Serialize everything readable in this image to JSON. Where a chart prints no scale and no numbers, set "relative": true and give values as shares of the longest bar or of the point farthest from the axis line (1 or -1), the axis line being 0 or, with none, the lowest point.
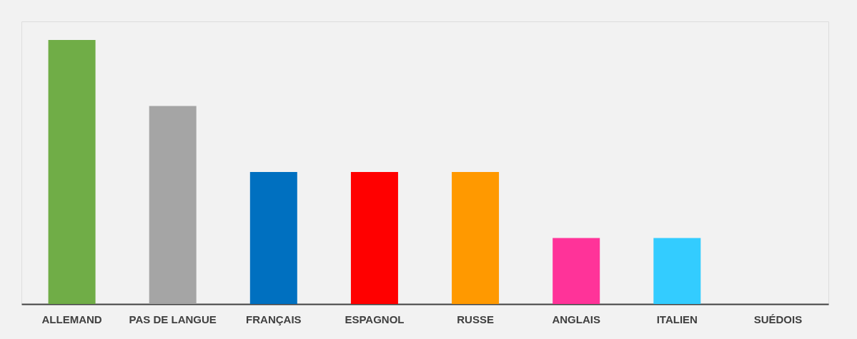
{
  "chart_data": {
    "type": "bar",
    "relative": true,
    "categories": [
      "ALLEMAND",
      "PAS DE LANGUE",
      "FRANÇAIS",
      "ESPAGNOL",
      "RUSSE",
      "ANGLAIS",
      "ITALIEN",
      "SUÉDOIS"
    ],
    "values": [
      1,
      0.75,
      0.5,
      0.5,
      0.5,
      0.25,
      0.25,
      0
    ],
    "colors": [
      "#70ad47",
      "#a5a5a5",
      "#0070c0",
      "#ff0000",
      "#ff9900",
      "#ff3399",
      "#33ccff",
      "#7030a0"
    ],
    "grid": false
  }
}
